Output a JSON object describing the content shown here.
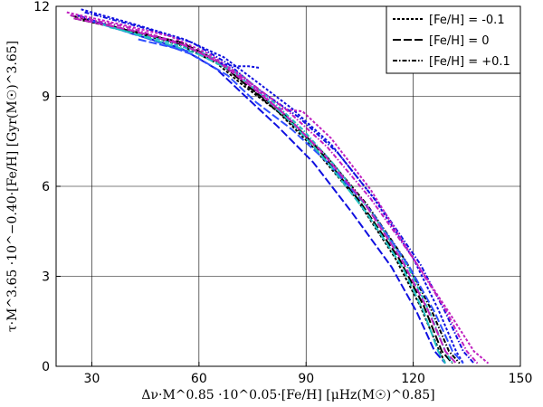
{
  "chart_data": {
    "type": "line",
    "xlabel": "Δν·M^0.85 ·10^0.05·[Fe/H] [μHz(M☉)^0.85]",
    "ylabel": "τ·M^3.65 ·10^−0.40·[Fe/H] [Gyr(M☉)^3.65]",
    "xlim": [
      20,
      150
    ],
    "ylim": [
      0,
      12
    ],
    "xticks": [
      "30",
      "60",
      "90",
      "120",
      "150"
    ],
    "yticks": [
      "0",
      "3",
      "6",
      "9",
      "12"
    ],
    "grid": true,
    "legend_position": "top-right",
    "legend": [
      {
        "label": "[Fe/H] = -0.1",
        "dash": "short"
      },
      {
        "label": "[Fe/H] = 0",
        "dash": "long"
      },
      {
        "label": "[Fe/H] = +0.1",
        "dash": "dashdot"
      }
    ],
    "series": [
      {
        "color": "#000000",
        "dash": "short",
        "x": [
          25,
          40,
          55,
          65,
          72,
          82,
          92,
          104,
          115,
          122,
          127,
          129
        ],
        "y": [
          11.6,
          11.2,
          10.7,
          10.1,
          9.4,
          8.5,
          7.3,
          5.6,
          3.6,
          2.0,
          0.6,
          0.1
        ]
      },
      {
        "color": "#000000",
        "dash": "long",
        "x": [
          24,
          40,
          55,
          65,
          73,
          83,
          93,
          105,
          116,
          123,
          128,
          131
        ],
        "y": [
          11.7,
          11.2,
          10.8,
          10.2,
          9.4,
          8.5,
          7.3,
          5.5,
          3.6,
          2.0,
          0.5,
          0.1
        ]
      },
      {
        "color": "#000000",
        "dash": "dashdot",
        "x": [
          25,
          41,
          56,
          66,
          74,
          84,
          95,
          107,
          118,
          125,
          130,
          133
        ],
        "y": [
          11.6,
          11.2,
          10.7,
          10.1,
          9.3,
          8.3,
          7.1,
          5.4,
          3.5,
          1.9,
          0.5,
          0.1
        ]
      },
      {
        "color": "#1010e0",
        "dash": "short",
        "x": [
          27,
          42,
          56,
          67,
          76,
          86,
          97,
          109,
          120,
          127,
          132,
          134
        ],
        "y": [
          11.9,
          11.4,
          10.9,
          10.3,
          9.5,
          8.6,
          7.4,
          5.6,
          3.6,
          1.9,
          0.5,
          0.1
        ]
      },
      {
        "color": "#1010e0",
        "dash": "long",
        "x": [
          26,
          41,
          55,
          65,
          73,
          82,
          92,
          103,
          114,
          121,
          126,
          129
        ],
        "y": [
          11.7,
          11.1,
          10.6,
          9.9,
          9.0,
          8.0,
          6.8,
          5.1,
          3.3,
          1.8,
          0.5,
          0.1
        ]
      },
      {
        "color": "#1010e0",
        "dash": "dashdot",
        "x": [
          28,
          44,
          58,
          68,
          77,
          88,
          99,
          111,
          122,
          129,
          134,
          137
        ],
        "y": [
          11.8,
          11.3,
          10.8,
          10.1,
          9.2,
          8.3,
          7.1,
          5.3,
          3.4,
          1.8,
          0.5,
          0.1
        ]
      },
      {
        "color": "#3050ff",
        "dash": "long",
        "x": [
          30,
          44,
          58,
          68,
          76,
          86,
          96,
          108,
          119,
          126,
          131,
          134
        ],
        "y": [
          11.5,
          11.0,
          10.4,
          9.7,
          8.8,
          7.9,
          6.8,
          5.2,
          3.3,
          1.8,
          0.5,
          0.1
        ]
      },
      {
        "color": "#20c0c0",
        "dash": "long",
        "x": [
          33,
          47,
          60,
          70,
          78,
          87,
          96,
          107,
          117,
          123,
          127,
          129
        ],
        "y": [
          11.4,
          10.9,
          10.4,
          9.8,
          9.0,
          8.0,
          6.8,
          5.1,
          3.3,
          1.8,
          0.5,
          0.1
        ]
      },
      {
        "color": "#20c0c0",
        "dash": "dashdot",
        "x": [
          35,
          49,
          62,
          72,
          80,
          89,
          98,
          109,
          119,
          125,
          129,
          131
        ],
        "y": [
          11.3,
          10.9,
          10.4,
          9.7,
          8.9,
          7.9,
          6.7,
          5.0,
          3.2,
          1.7,
          0.5,
          0.1
        ]
      },
      {
        "color": "#c020c0",
        "dash": "short",
        "x": [
          23,
          38,
          52,
          63,
          73,
          82,
          89,
          97,
          108,
          120,
          130,
          137,
          141
        ],
        "y": [
          11.8,
          11.4,
          11.0,
          10.4,
          9.6,
          8.6,
          8.5,
          7.6,
          5.9,
          3.6,
          1.8,
          0.5,
          0.1
        ]
      },
      {
        "color": "#c020c0",
        "dash": "dashdot",
        "x": [
          24,
          40,
          54,
          65,
          75,
          85,
          96,
          108,
          120,
          129,
          135,
          138
        ],
        "y": [
          11.7,
          11.3,
          10.8,
          10.2,
          9.4,
          8.5,
          7.3,
          5.6,
          3.6,
          1.9,
          0.5,
          0.1
        ]
      },
      {
        "color": "#c020c0",
        "dash": "long",
        "x": [
          25,
          41,
          56,
          66,
          75,
          84,
          94,
          106,
          117,
          124,
          129,
          132
        ],
        "y": [
          11.6,
          11.2,
          10.7,
          10.1,
          9.3,
          8.4,
          7.2,
          5.5,
          3.5,
          1.9,
          0.5,
          0.1
        ]
      },
      {
        "color": "#1010e0",
        "dash": "short",
        "x": [
          66,
          70,
          74,
          77
        ],
        "y": [
          10.1,
          10.0,
          10.0,
          9.95
        ]
      },
      {
        "color": "#3050ff",
        "dash": "long",
        "x": [
          43,
          50,
          57
        ],
        "y": [
          10.9,
          10.7,
          10.5
        ]
      }
    ]
  }
}
